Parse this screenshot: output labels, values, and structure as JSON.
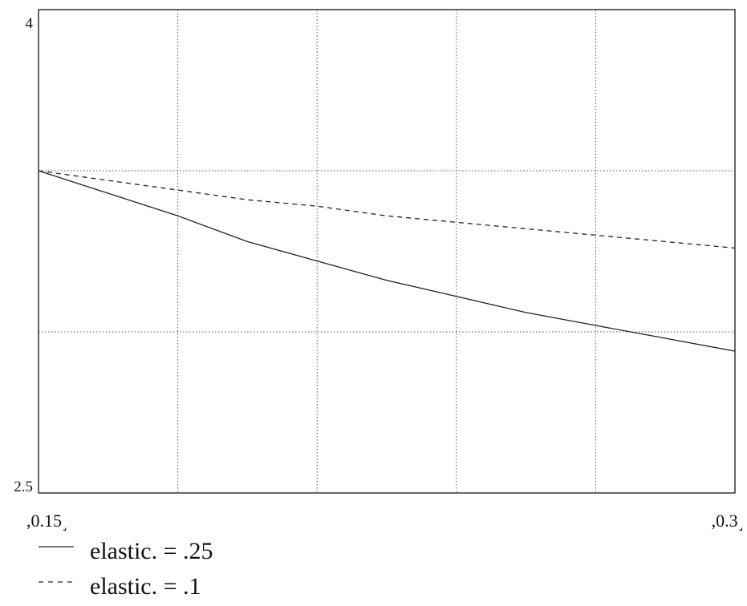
{
  "chart_data": {
    "type": "line",
    "title": "",
    "xlabel": "",
    "ylabel": "",
    "xlim": [
      0.15,
      0.3
    ],
    "ylim": [
      2.5,
      4
    ],
    "x_ticks_shown": [
      "0.15",
      "0.3"
    ],
    "y_ticks_shown": [
      "4",
      "2.5"
    ],
    "x_tick_bracket_left": ",",
    "x_tick_bracket_right": "˼",
    "grid": true,
    "grid_x": [
      0.18,
      0.21,
      0.24,
      0.27
    ],
    "grid_y": [
      3.0,
      3.5
    ],
    "legend_position": "bottom-left",
    "series": [
      {
        "name": "elastic. = .25",
        "style": "solid",
        "color": "#222222",
        "x": [
          0.15,
          0.165,
          0.18,
          0.195,
          0.21,
          0.225,
          0.24,
          0.255,
          0.27,
          0.285,
          0.3
        ],
        "y": [
          3.5,
          3.43,
          3.36,
          3.28,
          3.22,
          3.16,
          3.11,
          3.06,
          3.02,
          2.98,
          2.94
        ]
      },
      {
        "name": "elastic. = .1",
        "style": "dashed",
        "color": "#222222",
        "x": [
          0.15,
          0.165,
          0.18,
          0.195,
          0.21,
          0.225,
          0.24,
          0.255,
          0.27,
          0.285,
          0.3
        ],
        "y": [
          3.5,
          3.47,
          3.44,
          3.41,
          3.39,
          3.36,
          3.34,
          3.32,
          3.3,
          3.28,
          3.26
        ]
      }
    ]
  },
  "colors": {
    "background": "#ffffff",
    "frame": "#333333",
    "grid": "#555555",
    "series": "#222222"
  }
}
